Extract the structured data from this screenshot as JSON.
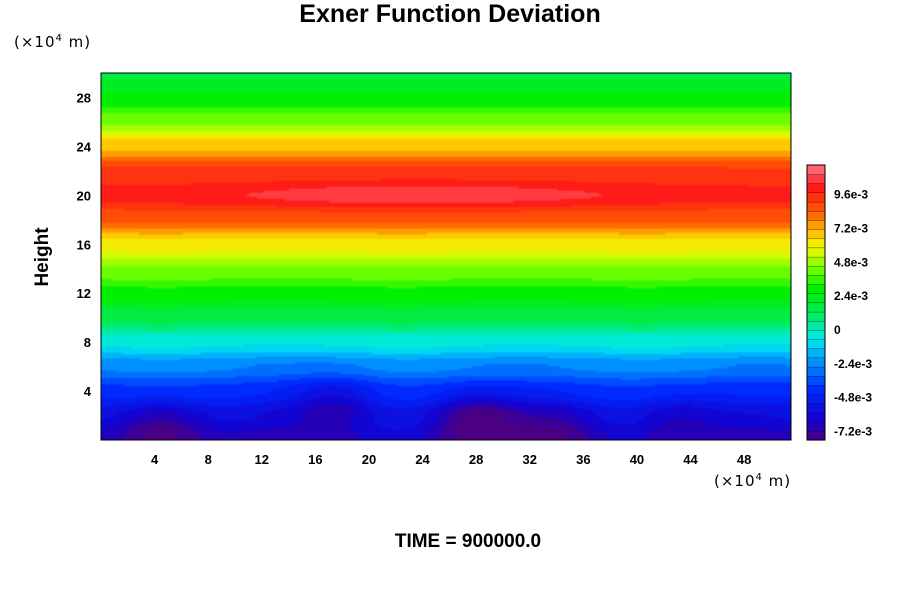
{
  "chart_data": {
    "type": "heatmap",
    "title": "Exner Function Deviation",
    "xlabel": "",
    "ylabel": "Height",
    "x_unit": {
      "prefix": "(×10",
      "exp": "4",
      "suffix": " m)"
    },
    "y_unit": {
      "prefix": "(×10",
      "exp": "4",
      "suffix": " m)"
    },
    "xlim": [
      0,
      51.5
    ],
    "ylim": [
      0,
      30
    ],
    "xticks": [
      4,
      8,
      12,
      16,
      20,
      24,
      28,
      32,
      36,
      40,
      44,
      48
    ],
    "xtick_labels": [
      "4",
      "8",
      "12",
      "16",
      "20",
      "24",
      "28",
      "32",
      "36",
      "40",
      "44",
      "48"
    ],
    "yticks": [
      4,
      8,
      12,
      16,
      20,
      24,
      28
    ],
    "ytick_labels": [
      "4",
      "8",
      "12",
      "16",
      "20",
      "24",
      "28"
    ],
    "colorbar": {
      "range": [
        -0.0078,
        0.0117
      ],
      "ticks": [
        -0.0072,
        -0.0048,
        -0.0024,
        0,
        0.0024,
        0.0048,
        0.0072,
        0.0096
      ],
      "tick_labels": [
        "-7.2e-3",
        "-4.8e-3",
        "-2.4e-3",
        "0",
        "2.4e-3",
        "4.8e-3",
        "7.2e-3",
        "9.6e-3"
      ],
      "levels": 30
    },
    "profile": {
      "heights": [
        0,
        2,
        4,
        6,
        8,
        10,
        12,
        14,
        16,
        18,
        20,
        22,
        24,
        26,
        28,
        30
      ],
      "values": [
        -0.0065,
        -0.0055,
        -0.0042,
        -0.0025,
        -0.0005,
        0.0015,
        0.003,
        0.0045,
        0.0062,
        0.0085,
        0.01,
        0.0092,
        0.007,
        0.0045,
        0.0027,
        0.0018
      ]
    },
    "features": [
      {
        "x": 4.5,
        "y": 0.8,
        "amplitude": -0.0022
      },
      {
        "x": 17.5,
        "y": 3.0,
        "amplitude": -0.0016
      },
      {
        "x": 28.0,
        "y": 1.6,
        "amplitude": -0.0026
      },
      {
        "x": 34.0,
        "y": 1.0,
        "amplitude": -0.0014
      },
      {
        "x": 43.0,
        "y": 1.5,
        "amplitude": -0.0012
      },
      {
        "x": 24.0,
        "y": 20.0,
        "amplitude": 0.001
      }
    ],
    "grid": false,
    "legend": "right"
  },
  "footer": {
    "time_label": "TIME = 900000.0"
  }
}
